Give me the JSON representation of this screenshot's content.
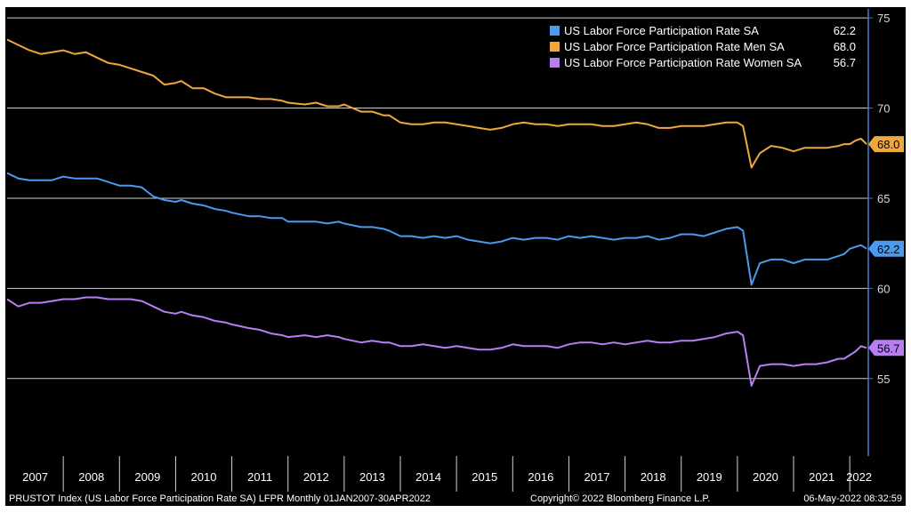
{
  "chart_data": {
    "type": "line",
    "y_axis_side": "right",
    "ylim": [
      50.7,
      75.5
    ],
    "yticks": [
      55,
      60,
      65,
      70,
      75
    ],
    "grid": "horizontal",
    "legend_placement": "top-right",
    "x_start": 2007.0,
    "x_end": 2022.33,
    "xticks": [
      "2007",
      "2008",
      "2009",
      "2010",
      "2011",
      "2012",
      "2013",
      "2014",
      "2015",
      "2016",
      "2017",
      "2018",
      "2019",
      "2020",
      "2021",
      "2022"
    ],
    "series": [
      {
        "name": "US Labor Force Participation Rate SA",
        "legend_value": "62.2",
        "last_label": "62.2",
        "color": "#4a9af0",
        "points": [
          [
            2007.0,
            66.4
          ],
          [
            2007.2,
            66.1
          ],
          [
            2007.4,
            66.0
          ],
          [
            2007.6,
            66.0
          ],
          [
            2007.8,
            66.0
          ],
          [
            2008.0,
            66.2
          ],
          [
            2008.2,
            66.1
          ],
          [
            2008.4,
            66.1
          ],
          [
            2008.6,
            66.1
          ],
          [
            2008.8,
            65.9
          ],
          [
            2009.0,
            65.7
          ],
          [
            2009.2,
            65.7
          ],
          [
            2009.4,
            65.6
          ],
          [
            2009.6,
            65.1
          ],
          [
            2009.8,
            64.9
          ],
          [
            2010.0,
            64.8
          ],
          [
            2010.1,
            64.9
          ],
          [
            2010.3,
            64.7
          ],
          [
            2010.5,
            64.6
          ],
          [
            2010.7,
            64.4
          ],
          [
            2010.9,
            64.3
          ],
          [
            2011.0,
            64.2
          ],
          [
            2011.3,
            64.0
          ],
          [
            2011.5,
            64.0
          ],
          [
            2011.7,
            63.9
          ],
          [
            2011.9,
            63.9
          ],
          [
            2012.0,
            63.7
          ],
          [
            2012.3,
            63.7
          ],
          [
            2012.5,
            63.7
          ],
          [
            2012.7,
            63.6
          ],
          [
            2012.9,
            63.7
          ],
          [
            2013.0,
            63.6
          ],
          [
            2013.3,
            63.4
          ],
          [
            2013.5,
            63.4
          ],
          [
            2013.7,
            63.3
          ],
          [
            2013.8,
            63.2
          ],
          [
            2014.0,
            62.9
          ],
          [
            2014.2,
            62.9
          ],
          [
            2014.4,
            62.8
          ],
          [
            2014.6,
            62.9
          ],
          [
            2014.8,
            62.8
          ],
          [
            2015.0,
            62.9
          ],
          [
            2015.2,
            62.7
          ],
          [
            2015.4,
            62.6
          ],
          [
            2015.6,
            62.5
          ],
          [
            2015.8,
            62.6
          ],
          [
            2016.0,
            62.8
          ],
          [
            2016.2,
            62.7
          ],
          [
            2016.4,
            62.8
          ],
          [
            2016.6,
            62.8
          ],
          [
            2016.8,
            62.7
          ],
          [
            2017.0,
            62.9
          ],
          [
            2017.2,
            62.8
          ],
          [
            2017.4,
            62.9
          ],
          [
            2017.6,
            62.8
          ],
          [
            2017.8,
            62.7
          ],
          [
            2018.0,
            62.8
          ],
          [
            2018.2,
            62.8
          ],
          [
            2018.4,
            62.9
          ],
          [
            2018.6,
            62.7
          ],
          [
            2018.8,
            62.8
          ],
          [
            2019.0,
            63.0
          ],
          [
            2019.2,
            63.0
          ],
          [
            2019.4,
            62.9
          ],
          [
            2019.6,
            63.1
          ],
          [
            2019.8,
            63.3
          ],
          [
            2020.0,
            63.4
          ],
          [
            2020.1,
            63.2
          ],
          [
            2020.25,
            60.2
          ],
          [
            2020.4,
            61.4
          ],
          [
            2020.6,
            61.6
          ],
          [
            2020.8,
            61.6
          ],
          [
            2021.0,
            61.4
          ],
          [
            2021.2,
            61.6
          ],
          [
            2021.4,
            61.6
          ],
          [
            2021.6,
            61.6
          ],
          [
            2021.8,
            61.8
          ],
          [
            2021.9,
            61.9
          ],
          [
            2022.0,
            62.2
          ],
          [
            2022.1,
            62.3
          ],
          [
            2022.2,
            62.4
          ],
          [
            2022.3,
            62.2
          ]
        ]
      },
      {
        "name": "US Labor Force Participation Rate Men SA",
        "legend_value": "68.0",
        "last_label": "68.0",
        "color": "#f0a83c",
        "points": [
          [
            2007.0,
            73.8
          ],
          [
            2007.2,
            73.5
          ],
          [
            2007.4,
            73.2
          ],
          [
            2007.6,
            73.0
          ],
          [
            2007.8,
            73.1
          ],
          [
            2008.0,
            73.2
          ],
          [
            2008.2,
            73.0
          ],
          [
            2008.4,
            73.1
          ],
          [
            2008.6,
            72.8
          ],
          [
            2008.8,
            72.5
          ],
          [
            2009.0,
            72.4
          ],
          [
            2009.2,
            72.2
          ],
          [
            2009.4,
            72.0
          ],
          [
            2009.6,
            71.8
          ],
          [
            2009.8,
            71.3
          ],
          [
            2010.0,
            71.4
          ],
          [
            2010.1,
            71.5
          ],
          [
            2010.3,
            71.1
          ],
          [
            2010.5,
            71.1
          ],
          [
            2010.7,
            70.8
          ],
          [
            2010.9,
            70.6
          ],
          [
            2011.0,
            70.6
          ],
          [
            2011.3,
            70.6
          ],
          [
            2011.5,
            70.5
          ],
          [
            2011.7,
            70.5
          ],
          [
            2011.9,
            70.4
          ],
          [
            2012.0,
            70.3
          ],
          [
            2012.3,
            70.2
          ],
          [
            2012.5,
            70.3
          ],
          [
            2012.7,
            70.1
          ],
          [
            2012.9,
            70.1
          ],
          [
            2013.0,
            70.2
          ],
          [
            2013.3,
            69.8
          ],
          [
            2013.5,
            69.8
          ],
          [
            2013.7,
            69.6
          ],
          [
            2013.8,
            69.6
          ],
          [
            2014.0,
            69.2
          ],
          [
            2014.2,
            69.1
          ],
          [
            2014.4,
            69.1
          ],
          [
            2014.6,
            69.2
          ],
          [
            2014.8,
            69.2
          ],
          [
            2015.0,
            69.1
          ],
          [
            2015.2,
            69.0
          ],
          [
            2015.4,
            68.9
          ],
          [
            2015.6,
            68.8
          ],
          [
            2015.8,
            68.9
          ],
          [
            2016.0,
            69.1
          ],
          [
            2016.2,
            69.2
          ],
          [
            2016.4,
            69.1
          ],
          [
            2016.6,
            69.1
          ],
          [
            2016.8,
            69.0
          ],
          [
            2017.0,
            69.1
          ],
          [
            2017.2,
            69.1
          ],
          [
            2017.4,
            69.1
          ],
          [
            2017.6,
            69.0
          ],
          [
            2017.8,
            69.0
          ],
          [
            2018.0,
            69.1
          ],
          [
            2018.2,
            69.2
          ],
          [
            2018.4,
            69.1
          ],
          [
            2018.6,
            68.9
          ],
          [
            2018.8,
            68.9
          ],
          [
            2019.0,
            69.0
          ],
          [
            2019.2,
            69.0
          ],
          [
            2019.4,
            69.0
          ],
          [
            2019.6,
            69.1
          ],
          [
            2019.8,
            69.2
          ],
          [
            2020.0,
            69.2
          ],
          [
            2020.1,
            69.0
          ],
          [
            2020.25,
            66.7
          ],
          [
            2020.4,
            67.5
          ],
          [
            2020.6,
            67.9
          ],
          [
            2020.8,
            67.8
          ],
          [
            2021.0,
            67.6
          ],
          [
            2021.2,
            67.8
          ],
          [
            2021.4,
            67.8
          ],
          [
            2021.6,
            67.8
          ],
          [
            2021.8,
            67.9
          ],
          [
            2021.9,
            68.0
          ],
          [
            2022.0,
            68.0
          ],
          [
            2022.1,
            68.2
          ],
          [
            2022.2,
            68.3
          ],
          [
            2022.3,
            68.0
          ]
        ]
      },
      {
        "name": "US Labor Force Participation Rate Women SA",
        "legend_value": "56.7",
        "last_label": "56.7",
        "color": "#b97ef2",
        "points": [
          [
            2007.0,
            59.4
          ],
          [
            2007.2,
            59.0
          ],
          [
            2007.4,
            59.2
          ],
          [
            2007.6,
            59.2
          ],
          [
            2007.8,
            59.3
          ],
          [
            2008.0,
            59.4
          ],
          [
            2008.2,
            59.4
          ],
          [
            2008.4,
            59.5
          ],
          [
            2008.6,
            59.5
          ],
          [
            2008.8,
            59.4
          ],
          [
            2009.0,
            59.4
          ],
          [
            2009.2,
            59.4
          ],
          [
            2009.4,
            59.3
          ],
          [
            2009.6,
            59.0
          ],
          [
            2009.8,
            58.7
          ],
          [
            2010.0,
            58.6
          ],
          [
            2010.1,
            58.7
          ],
          [
            2010.3,
            58.5
          ],
          [
            2010.5,
            58.4
          ],
          [
            2010.7,
            58.2
          ],
          [
            2010.9,
            58.1
          ],
          [
            2011.0,
            58.0
          ],
          [
            2011.3,
            57.8
          ],
          [
            2011.5,
            57.7
          ],
          [
            2011.7,
            57.5
          ],
          [
            2011.9,
            57.4
          ],
          [
            2012.0,
            57.3
          ],
          [
            2012.3,
            57.4
          ],
          [
            2012.5,
            57.3
          ],
          [
            2012.7,
            57.4
          ],
          [
            2012.9,
            57.3
          ],
          [
            2013.0,
            57.2
          ],
          [
            2013.3,
            57.0
          ],
          [
            2013.5,
            57.1
          ],
          [
            2013.7,
            57.0
          ],
          [
            2013.8,
            57.0
          ],
          [
            2014.0,
            56.8
          ],
          [
            2014.2,
            56.8
          ],
          [
            2014.4,
            56.9
          ],
          [
            2014.6,
            56.8
          ],
          [
            2014.8,
            56.7
          ],
          [
            2015.0,
            56.8
          ],
          [
            2015.2,
            56.7
          ],
          [
            2015.4,
            56.6
          ],
          [
            2015.6,
            56.6
          ],
          [
            2015.8,
            56.7
          ],
          [
            2016.0,
            56.9
          ],
          [
            2016.2,
            56.8
          ],
          [
            2016.4,
            56.8
          ],
          [
            2016.6,
            56.8
          ],
          [
            2016.8,
            56.7
          ],
          [
            2017.0,
            56.9
          ],
          [
            2017.2,
            57.0
          ],
          [
            2017.4,
            57.0
          ],
          [
            2017.6,
            56.9
          ],
          [
            2017.8,
            57.0
          ],
          [
            2018.0,
            56.9
          ],
          [
            2018.2,
            57.0
          ],
          [
            2018.4,
            57.1
          ],
          [
            2018.6,
            57.0
          ],
          [
            2018.8,
            57.0
          ],
          [
            2019.0,
            57.1
          ],
          [
            2019.2,
            57.1
          ],
          [
            2019.4,
            57.2
          ],
          [
            2019.6,
            57.3
          ],
          [
            2019.8,
            57.5
          ],
          [
            2020.0,
            57.6
          ],
          [
            2020.1,
            57.4
          ],
          [
            2020.25,
            54.6
          ],
          [
            2020.4,
            55.7
          ],
          [
            2020.6,
            55.8
          ],
          [
            2020.8,
            55.8
          ],
          [
            2021.0,
            55.7
          ],
          [
            2021.2,
            55.8
          ],
          [
            2021.4,
            55.8
          ],
          [
            2021.6,
            55.9
          ],
          [
            2021.8,
            56.1
          ],
          [
            2021.9,
            56.1
          ],
          [
            2022.0,
            56.3
          ],
          [
            2022.1,
            56.5
          ],
          [
            2022.2,
            56.8
          ],
          [
            2022.3,
            56.7
          ]
        ]
      }
    ]
  },
  "footer": {
    "left": "PRUSTOT Index (US Labor Force Participation Rate SA) LFPR  Monthly 01JAN2007-30APR2022",
    "center": "Copyright© 2022 Bloomberg Finance L.P.",
    "right": "06-May-2022 08:32:59"
  },
  "colors": {
    "background": "#000000",
    "grid": "#d0d0d0",
    "axis_line": "#4a7bd0",
    "tick_separator": "#d0d0d0"
  }
}
